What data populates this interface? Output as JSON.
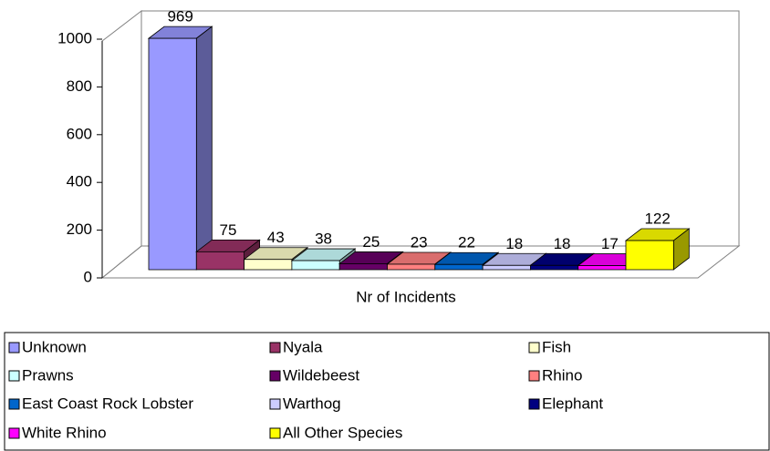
{
  "chart_data": {
    "type": "bar",
    "categories": [
      "Nr of Incidents"
    ],
    "series": [
      {
        "name": "Unknown",
        "color": "#9999ff",
        "values": [
          969
        ]
      },
      {
        "name": "Nyala",
        "color": "#993366",
        "values": [
          75
        ]
      },
      {
        "name": "Fish",
        "color": "#ffffcc",
        "values": [
          43
        ]
      },
      {
        "name": "Prawns",
        "color": "#ccffff",
        "values": [
          38
        ]
      },
      {
        "name": "Wildebeest",
        "color": "#660066",
        "values": [
          25
        ]
      },
      {
        "name": "Rhino",
        "color": "#ff8080",
        "values": [
          23
        ]
      },
      {
        "name": "East Coast Rock Lobster",
        "color": "#0066cc",
        "values": [
          22
        ]
      },
      {
        "name": "Warthog",
        "color": "#ccccff",
        "values": [
          18
        ]
      },
      {
        "name": "Elephant",
        "color": "#000080",
        "values": [
          18
        ]
      },
      {
        "name": "White Rhino",
        "color": "#ff00ff",
        "values": [
          17
        ]
      },
      {
        "name": "All Other Species",
        "color": "#ffff00",
        "values": [
          122
        ]
      }
    ],
    "ylim": [
      0,
      1000
    ],
    "yticks": [
      0,
      200,
      400,
      600,
      800,
      1000
    ]
  }
}
